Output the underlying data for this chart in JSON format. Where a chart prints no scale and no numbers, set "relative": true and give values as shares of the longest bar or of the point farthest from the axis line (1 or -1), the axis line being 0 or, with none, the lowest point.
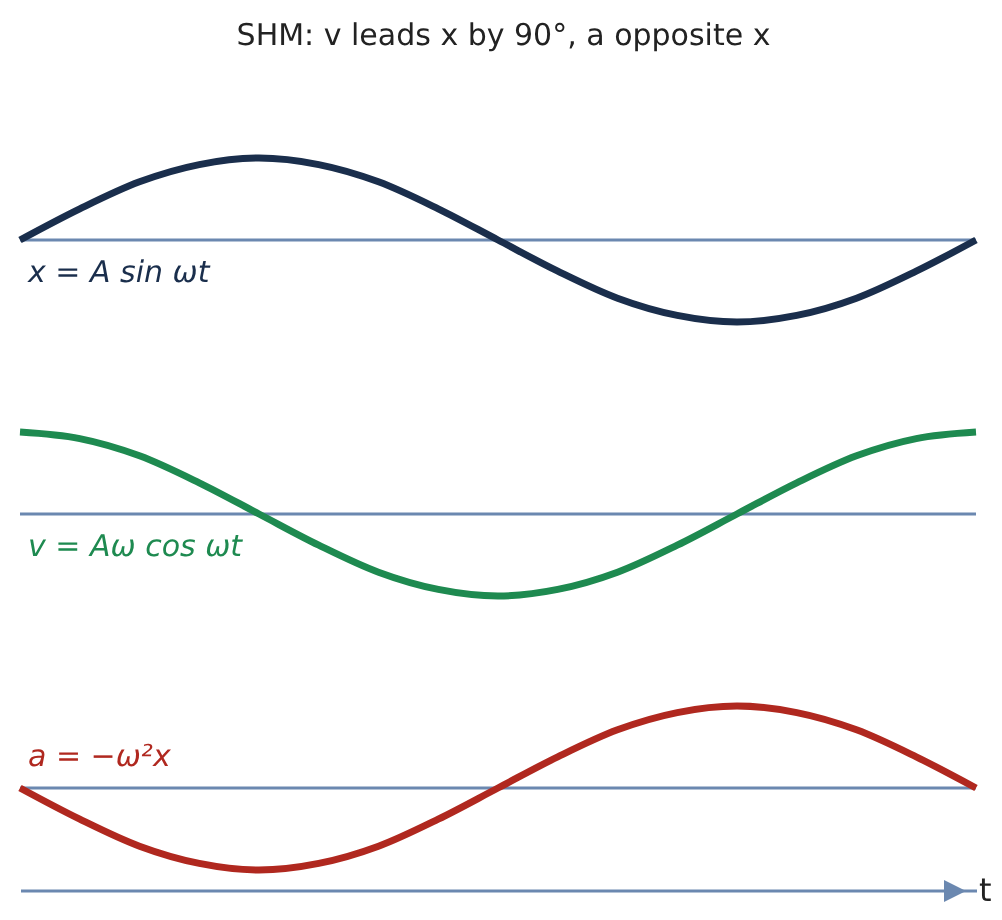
{
  "chart_data": [
    {
      "type": "line",
      "title": "SHM: v leads x by 90°, a opposite x",
      "relative": true,
      "categories": [
        null,
        null,
        null,
        null,
        null,
        null,
        null,
        null,
        null,
        null,
        null,
        null,
        null,
        null,
        null,
        null,
        null
      ],
      "ref_lines": [
        {
          "axis": "y",
          "value": 0,
          "color": "#6b88b0"
        }
      ],
      "series": [
        {
          "name": "x = A sin ωt",
          "color": "#1a2e4c",
          "values": [
            0,
            0.38,
            0.71,
            0.92,
            1,
            0.92,
            0.71,
            0.38,
            0,
            -0.38,
            -0.71,
            -0.92,
            -1,
            -0.92,
            -0.71,
            -0.38,
            0
          ]
        }
      ]
    },
    {
      "type": "line",
      "relative": true,
      "categories": [
        null,
        null,
        null,
        null,
        null,
        null,
        null,
        null,
        null,
        null,
        null,
        null,
        null,
        null,
        null,
        null,
        null
      ],
      "ref_lines": [
        {
          "axis": "y",
          "value": 0,
          "color": "#6b88b0"
        }
      ],
      "series": [
        {
          "name": "v = Aω cos ωt",
          "color": "#1e8a50",
          "values": [
            1,
            0.92,
            0.71,
            0.38,
            0,
            -0.38,
            -0.71,
            -0.92,
            -1,
            -0.92,
            -0.71,
            -0.38,
            0,
            0.38,
            0.71,
            0.92,
            1
          ]
        }
      ]
    },
    {
      "type": "line",
      "relative": true,
      "xlabel": "t",
      "categories": [
        null,
        null,
        null,
        null,
        null,
        null,
        null,
        null,
        null,
        null,
        null,
        null,
        null,
        null,
        null,
        null,
        null
      ],
      "ref_lines": [
        {
          "axis": "y",
          "value": 0,
          "color": "#6b88b0"
        }
      ],
      "series": [
        {
          "name": "a = −ω²x",
          "color": "#b0281f",
          "values": [
            0,
            -0.38,
            -0.71,
            -0.92,
            -1,
            -0.92,
            -0.71,
            -0.38,
            0,
            0.38,
            0.71,
            0.92,
            1,
            0.92,
            0.71,
            0.38,
            0
          ]
        }
      ]
    }
  ]
}
